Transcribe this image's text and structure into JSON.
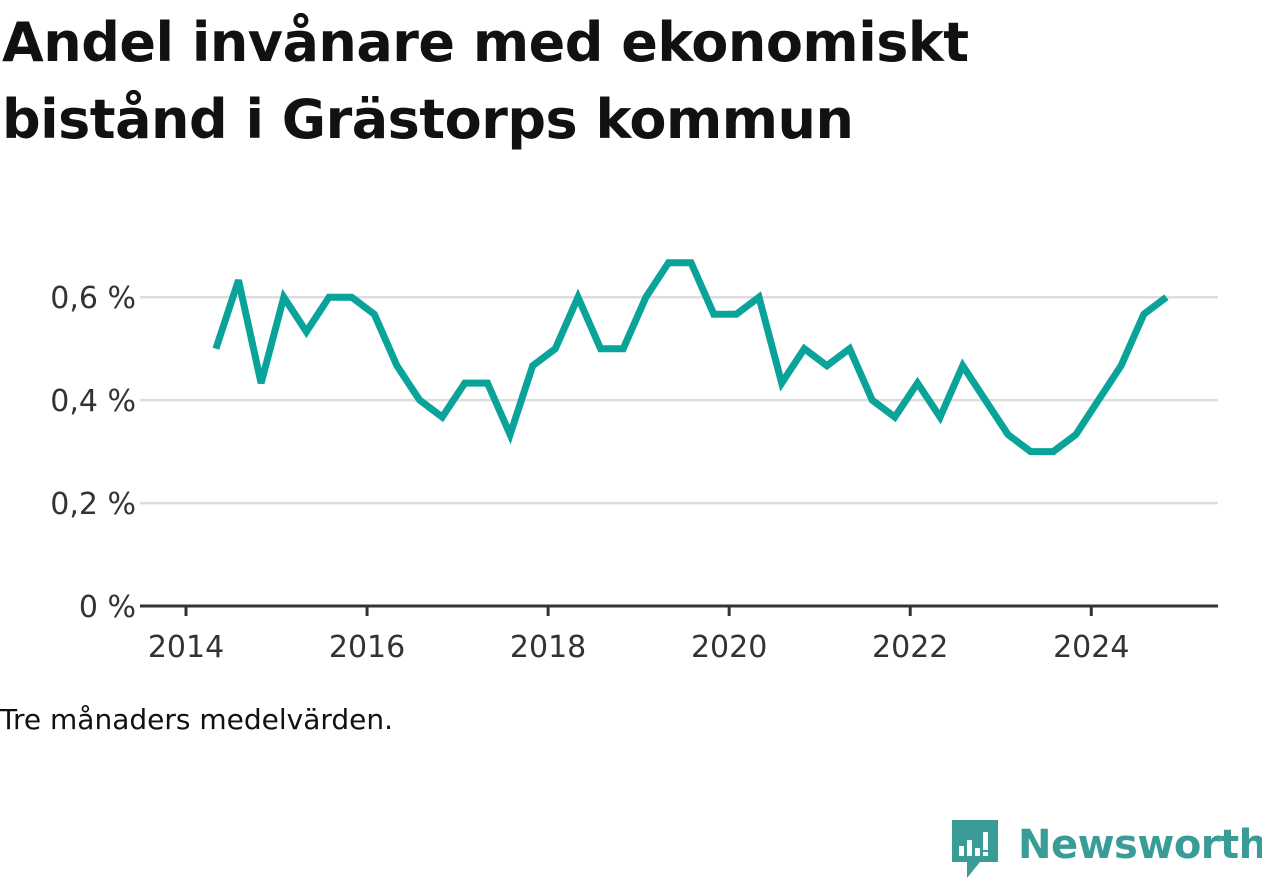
{
  "title": "Andel invånare med ekonomiskt bistånd i Grästorps kommun",
  "note": "Tre månaders medelvärden.",
  "brand": {
    "name": "Newsworthy",
    "icon": "newsworthy-logo-icon",
    "color": "#3a9c96"
  },
  "colors": {
    "line": "#0aa39a",
    "grid": "#dddddd",
    "axis": "#333333"
  },
  "chart_data": {
    "type": "line",
    "title": "Andel invånare med ekonomiskt bistånd i Grästorps kommun",
    "xlabel": "",
    "ylabel": "",
    "x_ticks": [
      "2014",
      "2016",
      "2018",
      "2020",
      "2022",
      "2024"
    ],
    "y_ticks": [
      {
        "value": 0,
        "label": "0 %"
      },
      {
        "value": 0.2,
        "label": "0,2 %"
      },
      {
        "value": 0.4,
        "label": "0,4 %"
      },
      {
        "value": 0.6,
        "label": "0,6 %"
      }
    ],
    "xlim": [
      2014,
      2025.4
    ],
    "ylim": [
      0,
      0.75
    ],
    "grid": true,
    "series": [
      {
        "color": "#0aa39a",
        "x": [
          2014.33,
          2014.58,
          2014.83,
          2015.08,
          2015.33,
          2015.58,
          2015.83,
          2016.08,
          2016.33,
          2016.58,
          2016.83,
          2017.08,
          2017.33,
          2017.58,
          2017.83,
          2018.08,
          2018.33,
          2018.58,
          2018.83,
          2019.08,
          2019.33,
          2019.58,
          2019.83,
          2020.08,
          2020.33,
          2020.58,
          2020.83,
          2021.08,
          2021.33,
          2021.58,
          2021.83,
          2022.08,
          2022.33,
          2022.58,
          2022.83,
          2023.08,
          2023.33,
          2023.58,
          2023.83,
          2024.08,
          2024.33,
          2024.58,
          2024.83
        ],
        "y": [
          0.5,
          0.633,
          0.433,
          0.6,
          0.533,
          0.6,
          0.6,
          0.567,
          0.467,
          0.4,
          0.367,
          0.433,
          0.433,
          0.333,
          0.467,
          0.5,
          0.6,
          0.5,
          0.5,
          0.6,
          0.667,
          0.667,
          0.567,
          0.567,
          0.6,
          0.433,
          0.5,
          0.467,
          0.5,
          0.4,
          0.367,
          0.433,
          0.367,
          0.467,
          0.4,
          0.333,
          0.3,
          0.3,
          0.333,
          0.4,
          0.467,
          0.567,
          0.6
        ]
      }
    ]
  }
}
